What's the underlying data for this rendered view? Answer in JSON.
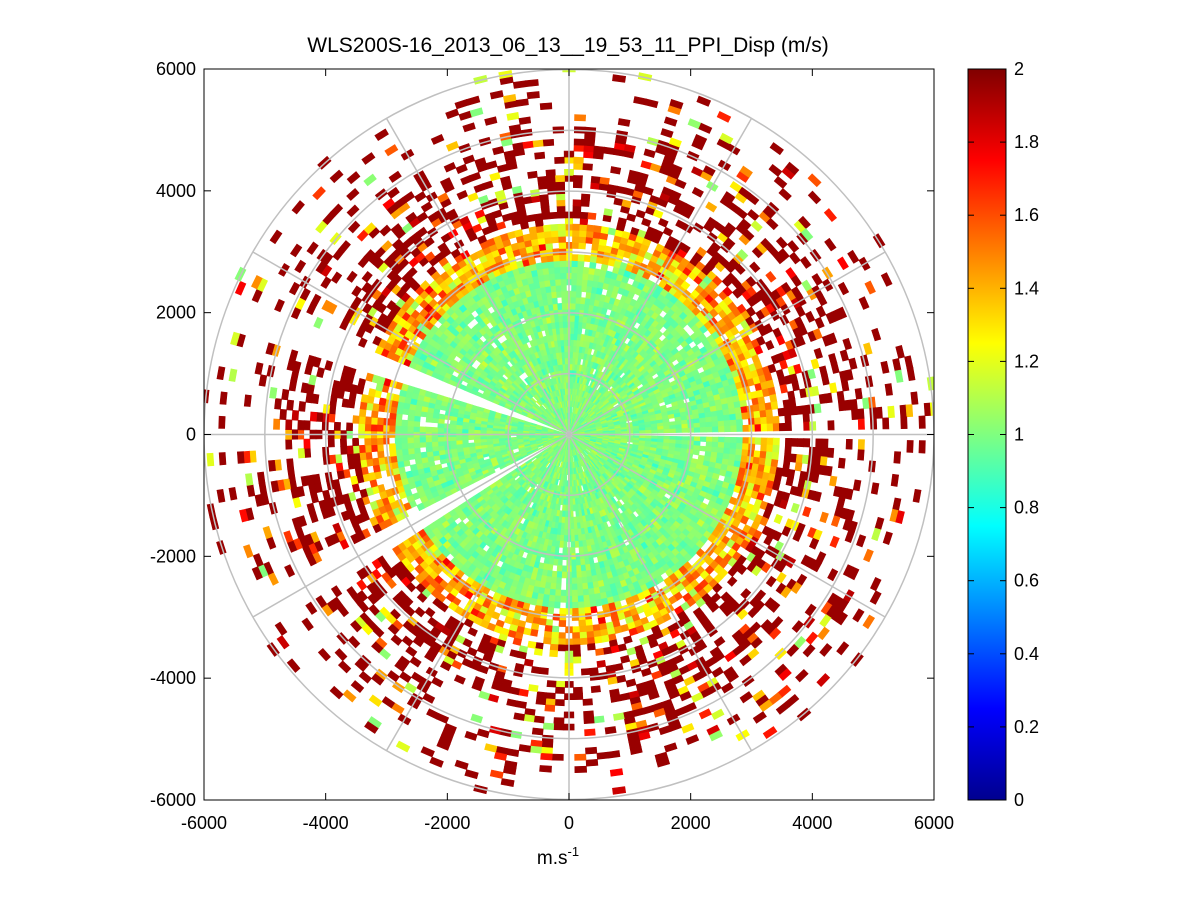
{
  "chart_data": {
    "type": "heatmap",
    "subtype": "polar-ppi-scan",
    "title": "WLS200S-16_2013_06_13__19_53_11_PPI_Disp (m/s)",
    "xlabel": "m.s",
    "xlabel_superscript": "-1",
    "ylabel": "",
    "xlim": [
      -6000,
      6000
    ],
    "ylim": [
      -6000,
      6000
    ],
    "xticks": [
      -6000,
      -4000,
      -2000,
      0,
      2000,
      4000,
      6000
    ],
    "yticks": [
      6000,
      4000,
      2000,
      0,
      -2000,
      -4000,
      -6000
    ],
    "xtick_labels": [
      "-6000",
      "-4000",
      "-2000",
      "0",
      "2000",
      "4000",
      "6000"
    ],
    "ytick_labels": [
      "6000",
      "4000",
      "2000",
      "0",
      "-2000",
      "-4000",
      "-6000"
    ],
    "polar_grid": {
      "ring_radii": [
        1000,
        2000,
        3000,
        4000,
        5000,
        6000
      ],
      "spoke_angles_deg": [
        0,
        30,
        60,
        90,
        120,
        150,
        180,
        210,
        240,
        270,
        300,
        330
      ]
    },
    "colorbar": {
      "colormap": "jet",
      "min": 0,
      "max": 2,
      "ticks": [
        2,
        1.8,
        1.6,
        1.4,
        1.2,
        1,
        0.8,
        0.6,
        0.4,
        0.2,
        0
      ],
      "tick_labels": [
        "2",
        "1.8",
        "1.6",
        "1.4",
        "1.2",
        "1",
        "0.8",
        "0.6",
        "0.4",
        "0.2",
        "0"
      ]
    },
    "data_description_bands": [
      {
        "range_m": [
          0,
          2800
        ],
        "typical_value": 1.0
      },
      {
        "range_m": [
          2800,
          3400
        ],
        "typical_value": 1.4
      },
      {
        "range_m": [
          3400,
          6000
        ],
        "typical_value": 1.95
      }
    ],
    "gaps_azimuth_deg": [
      {
        "center": 90,
        "width": 3
      },
      {
        "center": 240,
        "width": 8
      },
      {
        "center": 290,
        "width": 6
      }
    ]
  }
}
